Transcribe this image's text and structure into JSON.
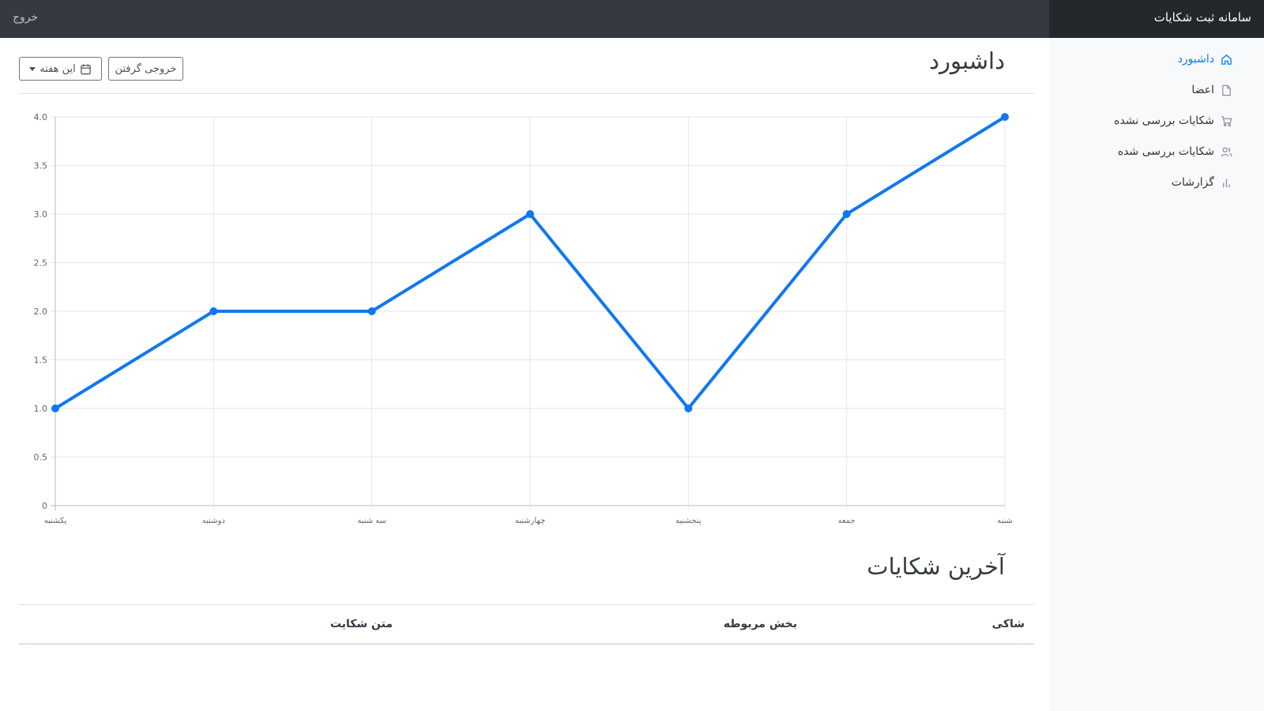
{
  "header": {
    "brand": "سامانه ثبت شکایات",
    "signout": "خروج"
  },
  "sidebar": {
    "items": [
      {
        "label": "داشبورد",
        "icon": "home-icon",
        "active": true
      },
      {
        "label": "اعضا",
        "icon": "file-icon"
      },
      {
        "label": "شکایات بررسی نشده",
        "icon": "shopping-cart-icon"
      },
      {
        "label": "شکایات بررسی شده",
        "icon": "users-icon"
      },
      {
        "label": "گزارشات",
        "icon": "bar-chart-icon"
      }
    ]
  },
  "main": {
    "title": "داشبورد",
    "export_label": "خروجی گرفتن",
    "week_label": "این هفته",
    "recent_title": "آخرین شکایات",
    "table": {
      "columns": [
        "شاکی",
        "بخش مربوطه",
        "متن شکایت"
      ]
    }
  },
  "colors": {
    "accent": "#007bff",
    "line": "#0f78f0",
    "navbar": "#343a40",
    "brand_bg": "#24272b",
    "sidebar_bg": "#f8f9fa"
  },
  "chart_data": {
    "type": "line",
    "categories": [
      "یکشنبه",
      "دوشنبه",
      "سه شنبه",
      "چهارشنبه",
      "پنجشنبه",
      "جمعه",
      "شنبه"
    ],
    "values": [
      1,
      2,
      2,
      3,
      1,
      3,
      4
    ],
    "y_ticks": [
      "0",
      "0.5",
      "1.0",
      "1.5",
      "2.0",
      "2.5",
      "3.0",
      "3.5",
      "4.0"
    ],
    "ylim": [
      0,
      4
    ],
    "grid": true,
    "legend": "none"
  }
}
